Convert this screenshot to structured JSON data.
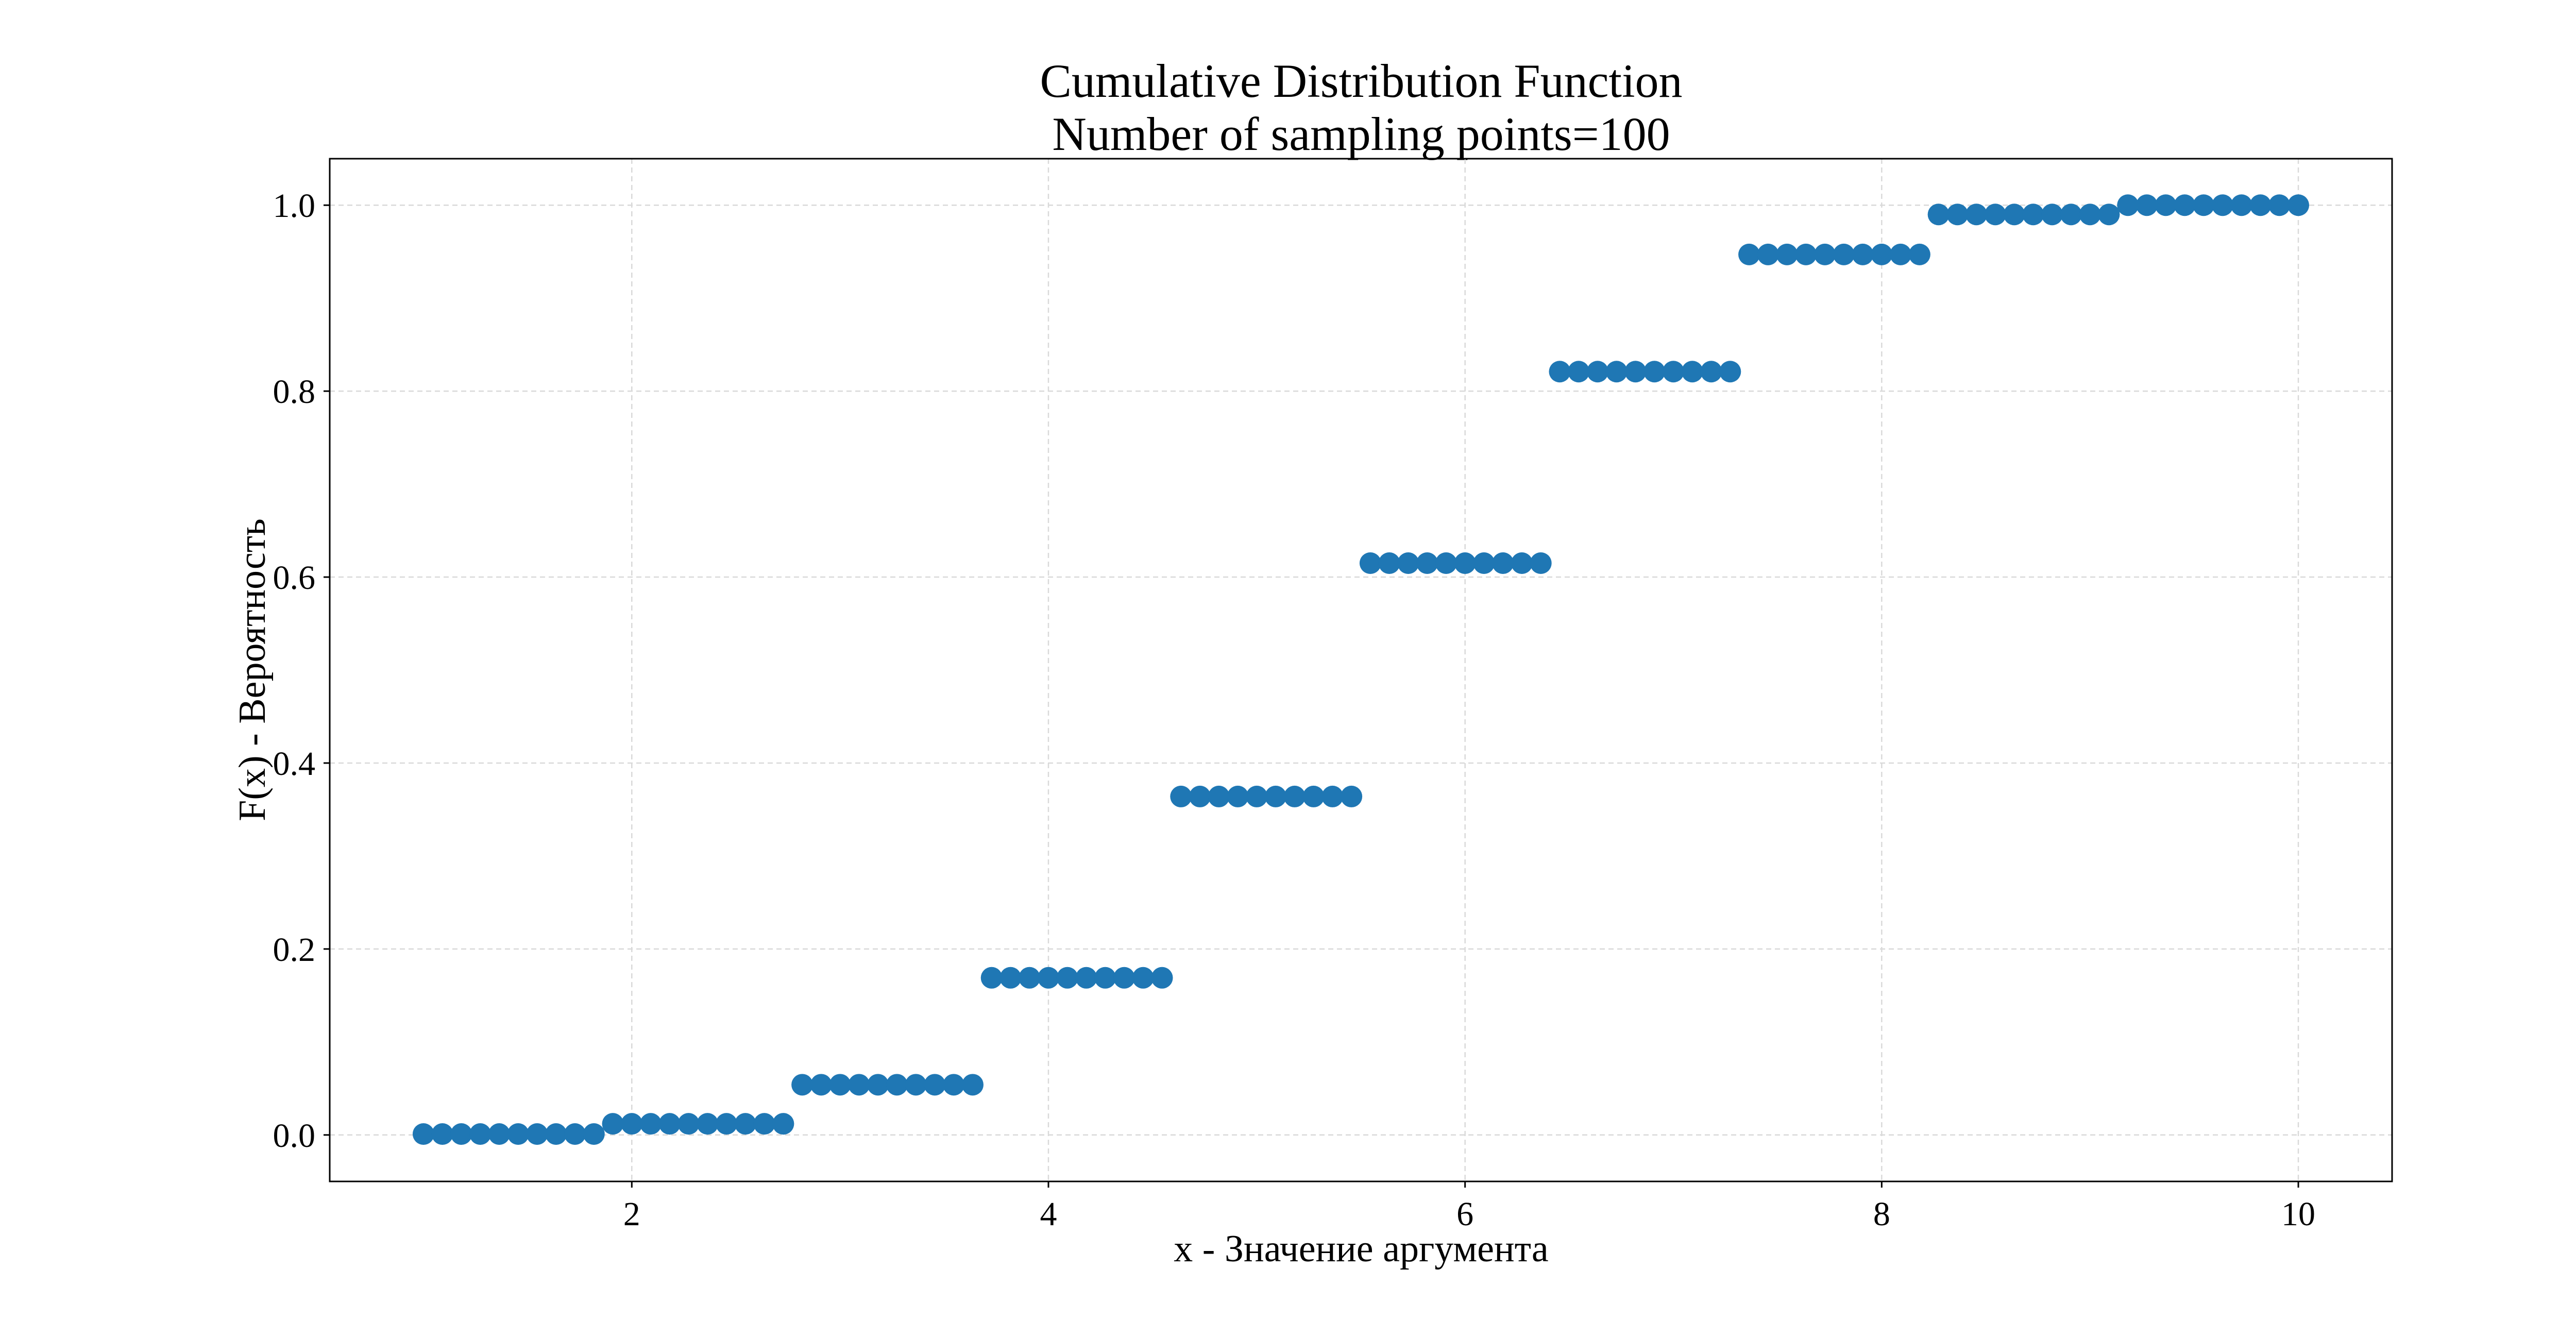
{
  "chart_data": {
    "type": "scatter",
    "title": "Cumulative Distribution Function",
    "subtitle": "Number of sampling points=100",
    "xlabel": "x - Значение аргумента",
    "ylabel": "F(x) - Вероятность",
    "xlim": [
      0.55,
      10.45
    ],
    "ylim": [
      -0.05,
      1.05
    ],
    "xticks": [
      2,
      4,
      6,
      8,
      10
    ],
    "xtick_labels": [
      "2",
      "4",
      "6",
      "8",
      "10"
    ],
    "yticks": [
      0.0,
      0.2,
      0.4,
      0.6,
      0.8,
      1.0
    ],
    "ytick_labels": [
      "0.0",
      "0.2",
      "0.4",
      "0.6",
      "0.8",
      "1.0"
    ],
    "grid": true,
    "marker_color": "#1f77b4",
    "x_range": [
      1,
      10
    ],
    "num_points": 100,
    "steps": [
      {
        "x_start": 1.0,
        "x_end": 1.82,
        "y": 0.001
      },
      {
        "x_start": 1.91,
        "x_end": 2.73,
        "y": 0.012
      },
      {
        "x_start": 2.82,
        "x_end": 3.64,
        "y": 0.054
      },
      {
        "x_start": 3.73,
        "x_end": 4.55,
        "y": 0.169
      },
      {
        "x_start": 4.64,
        "x_end": 5.45,
        "y": 0.364
      },
      {
        "x_start": 5.55,
        "x_end": 6.36,
        "y": 0.615
      },
      {
        "x_start": 6.45,
        "x_end": 7.27,
        "y": 0.821
      },
      {
        "x_start": 7.36,
        "x_end": 8.18,
        "y": 0.947
      },
      {
        "x_start": 8.27,
        "x_end": 9.09,
        "y": 0.99
      },
      {
        "x_start": 9.18,
        "x_end": 10.0,
        "y": 1.0
      }
    ]
  }
}
